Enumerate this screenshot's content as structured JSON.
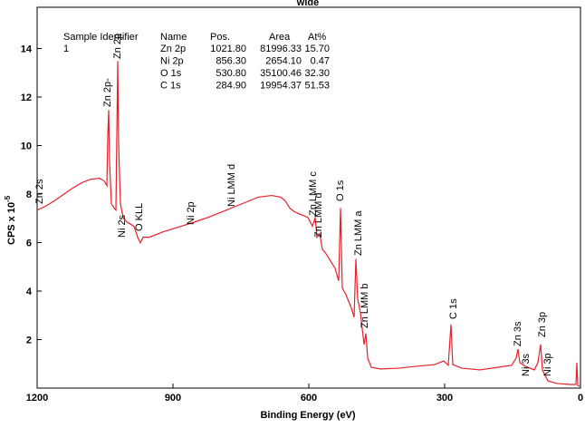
{
  "chart_data": {
    "type": "line",
    "title": "wide",
    "xlabel": "Binding Energy (eV)",
    "ylabel": "CPS x 10",
    "ylabel_exponent": "-5",
    "xlim": [
      1200,
      0
    ],
    "xticks": [
      1200,
      900,
      600,
      300,
      0
    ],
    "ylim": [
      0,
      15.7
    ],
    "yticks": [
      2,
      4,
      6,
      8,
      10,
      12,
      14
    ],
    "x": [
      1200,
      1182,
      1162,
      1142,
      1122,
      1102,
      1082,
      1062,
      1052,
      1046,
      1044,
      1042,
      1040,
      1036,
      1030,
      1026,
      1022,
      1020,
      1016,
      1010,
      1002,
      992,
      986,
      978,
      972,
      966,
      952,
      922,
      882,
      852,
      822,
      782,
      742,
      712,
      682,
      662,
      652,
      642,
      632,
      622,
      602,
      592,
      586,
      582,
      576,
      570,
      562,
      552,
      542,
      534,
      530,
      526,
      518,
      506,
      500,
      496,
      492,
      486,
      478,
      474,
      470,
      462,
      442,
      402,
      362,
      322,
      302,
      292,
      286,
      282,
      262,
      222,
      182,
      152,
      142,
      138,
      134,
      122,
      102,
      94,
      88,
      84,
      72,
      52,
      22,
      10,
      8,
      6,
      2
    ],
    "series": [
      {
        "name": "wide",
        "color": "#e8202a",
        "values": [
          7.34,
          7.49,
          7.72,
          7.98,
          8.24,
          8.46,
          8.61,
          8.65,
          8.54,
          8.35,
          10.41,
          11.46,
          9.29,
          7.6,
          7.42,
          7.34,
          13.48,
          10.04,
          7.6,
          7.04,
          6.85,
          6.74,
          6.67,
          6.22,
          5.99,
          6.22,
          6.22,
          6.44,
          6.67,
          6.85,
          7.04,
          7.34,
          7.64,
          7.87,
          7.94,
          7.87,
          7.72,
          7.42,
          7.27,
          7.19,
          7.04,
          6.67,
          7.04,
          6.22,
          6.37,
          5.73,
          5.54,
          5.24,
          4.94,
          4.42,
          7.42,
          4.12,
          3.86,
          3.3,
          2.92,
          5.32,
          3.67,
          3.11,
          1.8,
          2.25,
          1.24,
          0.86,
          0.79,
          0.82,
          0.9,
          0.97,
          1.12,
          0.94,
          2.62,
          0.97,
          0.82,
          0.75,
          0.86,
          0.94,
          1.24,
          1.61,
          1.05,
          0.9,
          0.75,
          1.05,
          1.8,
          0.75,
          0.3,
          0.19,
          0.15,
          0.15,
          1.05,
          0.11,
          0.07
        ]
      }
    ],
    "annotations": [
      "Zn 2s",
      "Zn 2p-",
      "Zn 2p",
      "Ni 2s",
      "O KLL",
      "Ni 2p",
      "Ni LMM d",
      "Zn LMM c",
      "Zn LMM d",
      "O 1s",
      "Zn LMM a",
      "Zn LMM b",
      "C 1s",
      "Zn 3s",
      "Zn 3p",
      "Ni 3s",
      "Ni 3p"
    ],
    "table": {
      "sample_header": "Sample Identifier",
      "sample": "1",
      "columns": [
        "Name",
        "Pos.",
        "Area",
        "At%"
      ],
      "rows": [
        [
          "Zn 2p",
          "1021.80",
          "81996.33",
          "15.70"
        ],
        [
          "Ni 2p",
          "856.30",
          "2654.10",
          "0.47"
        ],
        [
          "O 1s",
          "530.80",
          "35100.46",
          "32.30"
        ],
        [
          "C 1s",
          "284.90",
          "19954.37",
          "51.53"
        ]
      ]
    }
  }
}
